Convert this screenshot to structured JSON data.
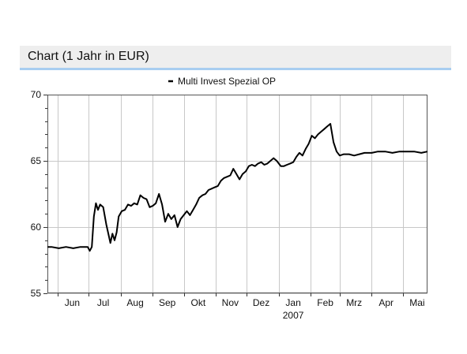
{
  "header": {
    "title": "Chart (1 Jahr in EUR)"
  },
  "chart_data": {
    "type": "line",
    "title": "",
    "xlabel": "2007",
    "ylabel": "",
    "y_range": [
      55,
      70
    ],
    "y_ticks": [
      55,
      60,
      65,
      70
    ],
    "grid": true,
    "legend_placement": "top-center",
    "x_range": [
      "2006-05-22",
      "2007-05-25"
    ],
    "x_tick_labels": [
      {
        "date": "2006-06-15",
        "label": "Jun"
      },
      {
        "date": "2006-07-15",
        "label": "Jul"
      },
      {
        "date": "2006-08-15",
        "label": "Aug"
      },
      {
        "date": "2006-09-15",
        "label": "Sep"
      },
      {
        "date": "2006-10-15",
        "label": "Okt"
      },
      {
        "date": "2006-11-15",
        "label": "Nov"
      },
      {
        "date": "2006-12-15",
        "label": "Dez"
      },
      {
        "date": "2007-01-15",
        "label": "Jan"
      },
      {
        "date": "2007-02-15",
        "label": "Feb"
      },
      {
        "date": "2007-03-15",
        "label": "Mrz"
      },
      {
        "date": "2007-04-15",
        "label": "Apr"
      },
      {
        "date": "2007-05-15",
        "label": "Mai"
      }
    ],
    "x_gridlines": [
      "2006-06-01",
      "2006-07-01",
      "2006-08-01",
      "2006-09-01",
      "2006-10-01",
      "2006-11-01",
      "2006-12-01",
      "2007-01-01",
      "2007-02-01",
      "2007-03-01",
      "2007-04-01",
      "2007-05-01"
    ],
    "series": [
      {
        "name": "Multi Invest Spezial OP",
        "color": "#000000",
        "points": [
          [
            "2006-05-22",
            58.5
          ],
          [
            "2006-05-26",
            58.5
          ],
          [
            "2006-06-02",
            58.4
          ],
          [
            "2006-06-09",
            58.5
          ],
          [
            "2006-06-16",
            58.4
          ],
          [
            "2006-06-23",
            58.5
          ],
          [
            "2006-06-30",
            58.5
          ],
          [
            "2006-07-02",
            58.2
          ],
          [
            "2006-07-04",
            58.5
          ],
          [
            "2006-07-06",
            60.8
          ],
          [
            "2006-07-08",
            61.8
          ],
          [
            "2006-07-10",
            61.3
          ],
          [
            "2006-07-12",
            61.7
          ],
          [
            "2006-07-15",
            61.5
          ],
          [
            "2006-07-18",
            60.2
          ],
          [
            "2006-07-20",
            59.5
          ],
          [
            "2006-07-22",
            58.8
          ],
          [
            "2006-07-24",
            59.5
          ],
          [
            "2006-07-26",
            59.0
          ],
          [
            "2006-07-28",
            59.6
          ],
          [
            "2006-07-30",
            60.8
          ],
          [
            "2006-08-02",
            61.2
          ],
          [
            "2006-08-05",
            61.3
          ],
          [
            "2006-08-08",
            61.7
          ],
          [
            "2006-08-11",
            61.6
          ],
          [
            "2006-08-14",
            61.8
          ],
          [
            "2006-08-17",
            61.7
          ],
          [
            "2006-08-20",
            62.4
          ],
          [
            "2006-08-23",
            62.2
          ],
          [
            "2006-08-26",
            62.1
          ],
          [
            "2006-08-29",
            61.5
          ],
          [
            "2006-09-01",
            61.6
          ],
          [
            "2006-09-04",
            61.8
          ],
          [
            "2006-09-07",
            62.5
          ],
          [
            "2006-09-10",
            61.7
          ],
          [
            "2006-09-13",
            60.4
          ],
          [
            "2006-09-16",
            61.0
          ],
          [
            "2006-09-19",
            60.6
          ],
          [
            "2006-09-22",
            60.9
          ],
          [
            "2006-09-25",
            60.0
          ],
          [
            "2006-09-28",
            60.6
          ],
          [
            "2006-10-01",
            60.9
          ],
          [
            "2006-10-04",
            61.2
          ],
          [
            "2006-10-07",
            60.9
          ],
          [
            "2006-10-10",
            61.3
          ],
          [
            "2006-10-13",
            61.7
          ],
          [
            "2006-10-16",
            62.2
          ],
          [
            "2006-10-19",
            62.4
          ],
          [
            "2006-10-22",
            62.5
          ],
          [
            "2006-10-25",
            62.8
          ],
          [
            "2006-10-28",
            62.9
          ],
          [
            "2006-10-31",
            63.0
          ],
          [
            "2006-11-03",
            63.1
          ],
          [
            "2006-11-06",
            63.5
          ],
          [
            "2006-11-09",
            63.7
          ],
          [
            "2006-11-12",
            63.8
          ],
          [
            "2006-11-15",
            63.9
          ],
          [
            "2006-11-18",
            64.4
          ],
          [
            "2006-11-21",
            64.0
          ],
          [
            "2006-11-24",
            63.6
          ],
          [
            "2006-11-27",
            64.0
          ],
          [
            "2006-11-30",
            64.2
          ],
          [
            "2006-12-03",
            64.6
          ],
          [
            "2006-12-06",
            64.7
          ],
          [
            "2006-12-09",
            64.6
          ],
          [
            "2006-12-12",
            64.8
          ],
          [
            "2006-12-15",
            64.9
          ],
          [
            "2006-12-18",
            64.7
          ],
          [
            "2006-12-21",
            64.8
          ],
          [
            "2006-12-24",
            65.0
          ],
          [
            "2006-12-27",
            65.2
          ],
          [
            "2006-12-30",
            65.0
          ],
          [
            "2007-01-03",
            64.6
          ],
          [
            "2007-01-06",
            64.6
          ],
          [
            "2007-01-09",
            64.7
          ],
          [
            "2007-01-12",
            64.8
          ],
          [
            "2007-01-15",
            64.9
          ],
          [
            "2007-01-18",
            65.3
          ],
          [
            "2007-01-21",
            65.6
          ],
          [
            "2007-01-24",
            65.4
          ],
          [
            "2007-01-27",
            65.9
          ],
          [
            "2007-01-30",
            66.3
          ],
          [
            "2007-02-02",
            66.9
          ],
          [
            "2007-02-05",
            66.7
          ],
          [
            "2007-02-08",
            67.0
          ],
          [
            "2007-02-11",
            67.2
          ],
          [
            "2007-02-14",
            67.4
          ],
          [
            "2007-02-17",
            67.6
          ],
          [
            "2007-02-20",
            67.8
          ],
          [
            "2007-02-23",
            66.4
          ],
          [
            "2007-02-26",
            65.7
          ],
          [
            "2007-03-01",
            65.4
          ],
          [
            "2007-03-05",
            65.5
          ],
          [
            "2007-03-10",
            65.5
          ],
          [
            "2007-03-15",
            65.4
          ],
          [
            "2007-03-20",
            65.5
          ],
          [
            "2007-03-25",
            65.6
          ],
          [
            "2007-04-01",
            65.6
          ],
          [
            "2007-04-07",
            65.7
          ],
          [
            "2007-04-14",
            65.7
          ],
          [
            "2007-04-21",
            65.6
          ],
          [
            "2007-04-28",
            65.7
          ],
          [
            "2007-05-05",
            65.7
          ],
          [
            "2007-05-12",
            65.7
          ],
          [
            "2007-05-19",
            65.6
          ],
          [
            "2007-05-25",
            65.7
          ]
        ]
      }
    ]
  }
}
